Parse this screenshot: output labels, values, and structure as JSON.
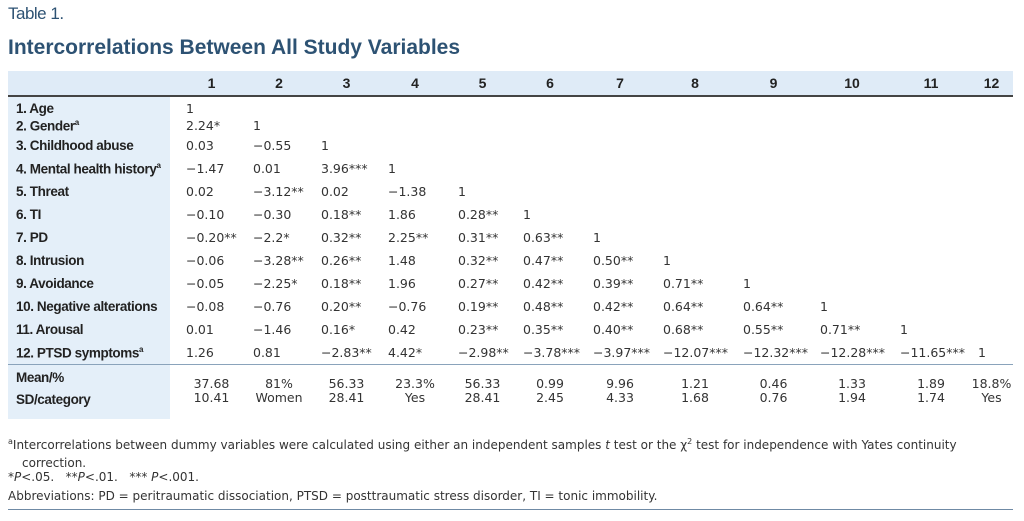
{
  "table_number": "Table 1.",
  "title": "Intercorrelations Between All Study Variables",
  "columns": [
    "1",
    "2",
    "3",
    "4",
    "5",
    "6",
    "7",
    "8",
    "9",
    "10",
    "11",
    "12"
  ],
  "rows": [
    {
      "label": "1. Age",
      "sup": "",
      "values": [
        "1",
        "",
        "",
        "",
        "",
        "",
        "",
        "",
        "",
        "",
        "",
        ""
      ]
    },
    {
      "label": "2. Gender",
      "sup": "a",
      "values": [
        "2.24*",
        "1",
        "",
        "",
        "",
        "",
        "",
        "",
        "",
        "",
        "",
        ""
      ]
    },
    {
      "label": "3. Childhood abuse",
      "sup": "",
      "values": [
        "0.03",
        "−0.55",
        "1",
        "",
        "",
        "",
        "",
        "",
        "",
        "",
        "",
        ""
      ]
    },
    {
      "label": "4. Mental health history",
      "sup": "a",
      "values": [
        "−1.47",
        "0.01",
        "3.96***",
        "1",
        "",
        "",
        "",
        "",
        "",
        "",
        "",
        ""
      ]
    },
    {
      "label": "5. Threat",
      "sup": "",
      "values": [
        "0.02",
        "−3.12**",
        "0.02",
        "−1.38",
        "1",
        "",
        "",
        "",
        "",
        "",
        "",
        ""
      ]
    },
    {
      "label": "6. TI",
      "sup": "",
      "values": [
        "−0.10",
        "−0.30",
        "0.18**",
        "1.86",
        "0.28**",
        "1",
        "",
        "",
        "",
        "",
        "",
        ""
      ]
    },
    {
      "label": "7. PD",
      "sup": "",
      "values": [
        "−0.20**",
        "−2.2*",
        "0.32**",
        "2.25**",
        "0.31**",
        "0.63**",
        "1",
        "",
        "",
        "",
        "",
        ""
      ]
    },
    {
      "label": "8. Intrusion",
      "sup": "",
      "values": [
        "−0.06",
        "−3.28**",
        "0.26**",
        "1.48",
        "0.32**",
        "0.47**",
        "0.50**",
        "1",
        "",
        "",
        "",
        ""
      ]
    },
    {
      "label": "9. Avoidance",
      "sup": "",
      "values": [
        "−0.05",
        "−2.25*",
        "0.18**",
        "1.96",
        "0.27**",
        "0.42**",
        "0.39**",
        "0.71**",
        "1",
        "",
        "",
        ""
      ]
    },
    {
      "label": "10. Negative alterations",
      "sup": "",
      "values": [
        "−0.08",
        "−0.76",
        "0.20**",
        "−0.76",
        "0.19**",
        "0.48**",
        "0.42**",
        "0.64**",
        "0.64**",
        "1",
        "",
        ""
      ]
    },
    {
      "label": "11. Arousal",
      "sup": "",
      "values": [
        "0.01",
        "−1.46",
        "0.16*",
        "0.42",
        "0.23**",
        "0.35**",
        "0.40**",
        "0.68**",
        "0.55**",
        "0.71**",
        "1",
        ""
      ]
    },
    {
      "label": "12. PTSD symptoms",
      "sup": "a",
      "values": [
        "1.26",
        "0.81",
        "−2.83**",
        "4.42*",
        "−2.98**",
        "−3.78***",
        "−3.97***",
        "−12.07***",
        "−12.32***",
        "−12.28***",
        "−11.65***",
        "1"
      ]
    }
  ],
  "summary": {
    "label_mean": "Mean/%",
    "label_sd": "SD/category",
    "mean": [
      "37.68",
      "81%",
      "56.33",
      "23.3%",
      "56.33",
      "0.99",
      "9.96",
      "1.21",
      "0.46",
      "1.33",
      "1.89",
      "18.8%"
    ],
    "sd": [
      "10.41",
      "Women",
      "28.41",
      "Yes",
      "28.41",
      "2.45",
      "4.33",
      "1.68",
      "0.76",
      "1.94",
      "1.74",
      "Yes"
    ]
  },
  "footnotes": {
    "a_mark": "a",
    "a_text_1": "Intercorrelations between dummy variables were calculated using either an independent samples ",
    "a_t": "t",
    "a_text_2": " test or the χ",
    "a_sup2": "2",
    "a_text_3": " test for independence with Yates continuity",
    "a_text_cont": "correction.",
    "p1_star": "*",
    "p1_p": "P",
    "p1_val": "<.05.",
    "p2_star": "**",
    "p2_p": "P",
    "p2_val": "<.01.",
    "p3_star": "*** ",
    "p3_p": "P",
    "p3_val": "<.001.",
    "abbreviations": "Abbreviations: PD = peritraumatic dissociation, PTSD = posttraumatic stress disorder, TI = tonic immobility."
  }
}
